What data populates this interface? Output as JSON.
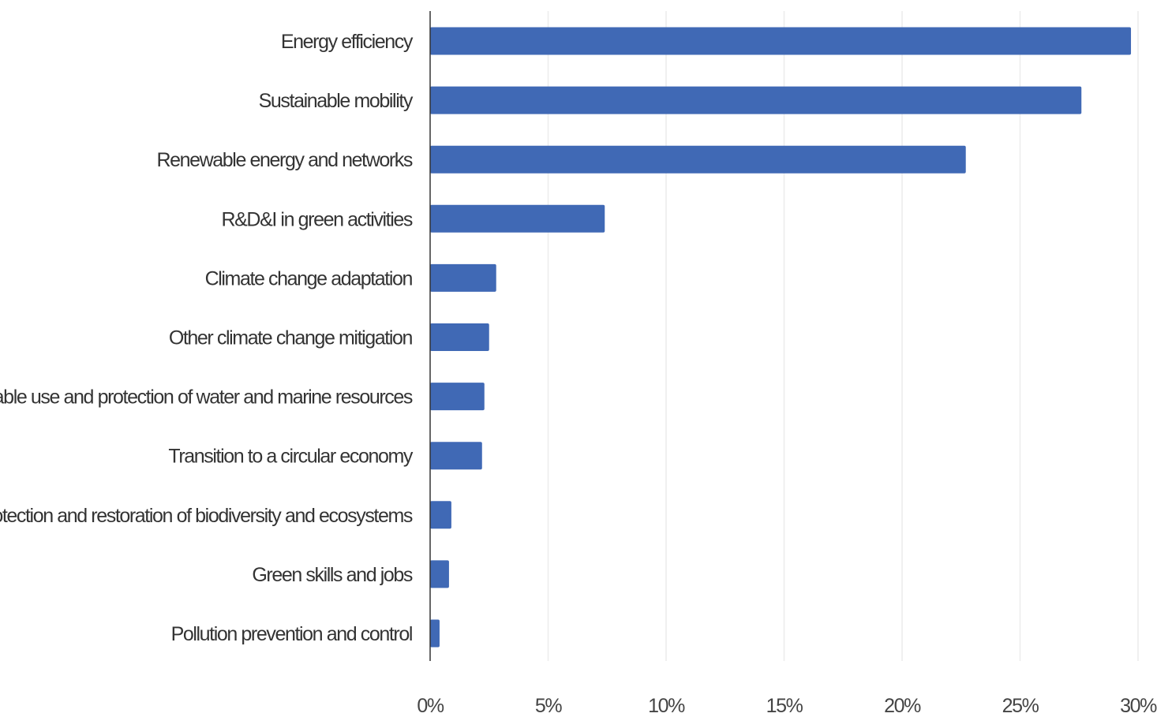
{
  "chart_data": {
    "type": "bar",
    "orientation": "horizontal",
    "title": "",
    "xlabel": "",
    "ylabel": "",
    "categories": [
      "Energy efficiency",
      "Sustainable mobility",
      "Renewable energy and networks",
      "R&D&I in green activities",
      "Climate change adaptation",
      "Other climate change mitigation",
      "Sustainable use and protection of water and marine resources",
      "Transition to a circular economy",
      "Protection and restoration of biodiversity and ecosystems",
      "Green skills and jobs",
      "Pollution prevention and control"
    ],
    "values": [
      29.7,
      27.6,
      22.7,
      7.4,
      2.8,
      2.5,
      2.3,
      2.2,
      0.9,
      0.8,
      0.4
    ],
    "value_unit": "%",
    "xlim": [
      0,
      30
    ],
    "xticks": [
      {
        "value": 0,
        "label": "0%"
      },
      {
        "value": 5,
        "label": "5%"
      },
      {
        "value": 10,
        "label": "10%"
      },
      {
        "value": 15,
        "label": "15%"
      },
      {
        "value": 20,
        "label": "20%"
      },
      {
        "value": 25,
        "label": "25%"
      },
      {
        "value": 30,
        "label": "30%"
      }
    ],
    "grid": "vertical",
    "legend": "none",
    "colors": {
      "bar": "#4069b5",
      "grid": "#ececec",
      "axis": "#333333",
      "text": "#333333"
    }
  }
}
